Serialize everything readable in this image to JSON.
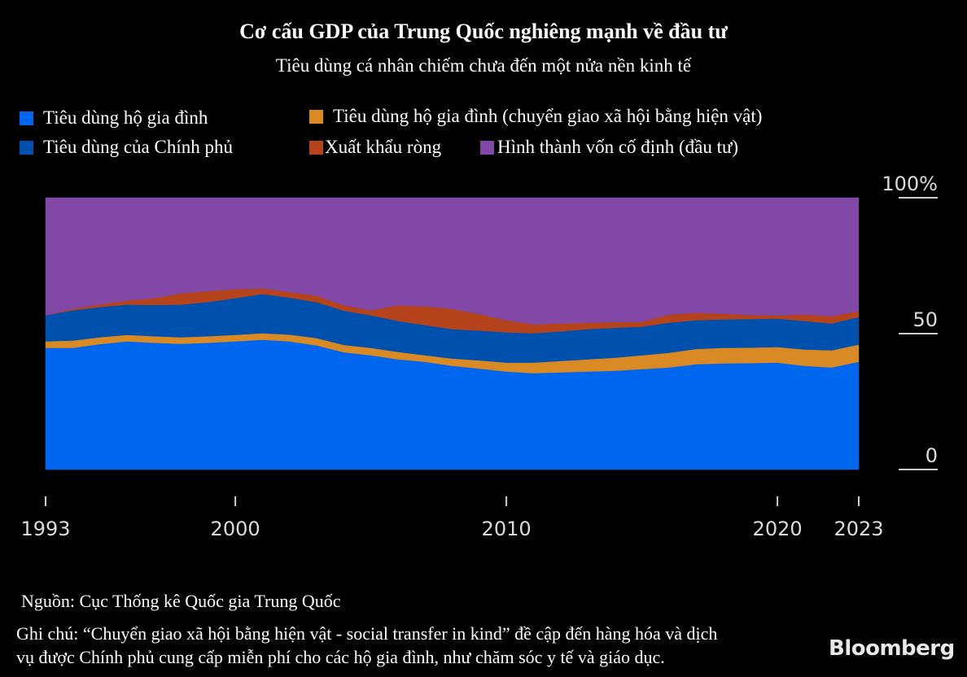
{
  "header": {
    "title": "Cơ cấu GDP của Trung Quốc nghiêng mạnh về đầu tư",
    "subtitle": "Tiêu dùng cá nhân chiếm chưa đến một nửa nền kinh tế"
  },
  "legend": [
    {
      "key": "household",
      "label": "Tiêu dùng hộ gia đình",
      "color": "#0066EE"
    },
    {
      "key": "transfer",
      "label": "Tiêu dùng hộ gia đình (chuyển giao xã hội bằng hiện vật)",
      "color": "#D98A24"
    },
    {
      "key": "government",
      "label": "Tiêu dùng của Chính phủ",
      "color": "#0050AE"
    },
    {
      "key": "net_exports",
      "label": "Xuất khẩu ròng",
      "color": "#B5441C"
    },
    {
      "key": "investment",
      "label": "Hình thành vốn cố định (đầu tư)",
      "color": "#8148A8"
    }
  ],
  "footer": {
    "source": "Nguồn: Cục Thống kê Quốc gia Trung Quốc",
    "note_line1": "Ghi chú: “Chuyển giao xã hội bằng hiện vật - social transfer in kind” đề cập đến hàng hóa và dịch",
    "note_line2": "vụ được Chính phủ cung cấp miễn phí cho các hộ gia đình, như chăm sóc y tế và giáo dục.",
    "brand": "Bloomberg"
  },
  "chart_data": {
    "type": "area",
    "stacked": true,
    "title": "Cơ cấu GDP của Trung Quốc nghiêng mạnh về đầu tư",
    "subtitle": "Tiêu dùng cá nhân chiếm chưa đến một nửa nền kinh tế",
    "xlabel": "",
    "ylabel": "",
    "x": [
      1993,
      1994,
      1995,
      1996,
      1997,
      1998,
      1999,
      2000,
      2001,
      2002,
      2003,
      2004,
      2005,
      2006,
      2007,
      2008,
      2009,
      2010,
      2011,
      2012,
      2013,
      2014,
      2015,
      2016,
      2017,
      2018,
      2019,
      2020,
      2021,
      2022,
      2023
    ],
    "x_tick_labels": [
      "1993",
      "2000",
      "2010",
      "2020",
      "2023"
    ],
    "y_tick_labels": [
      "100%",
      "50",
      "0"
    ],
    "y_ticks": [
      100,
      50,
      0
    ],
    "ylim": [
      0,
      100
    ],
    "xlim": [
      1993,
      2023
    ],
    "grid": false,
    "legend_position": "top",
    "series": [
      {
        "name": "Tiêu dùng hộ gia đình",
        "color": "#0066EE",
        "values": [
          44.6,
          44.6,
          46.0,
          47.0,
          46.5,
          46.1,
          46.5,
          47.0,
          47.6,
          47.0,
          45.5,
          43.0,
          41.9,
          40.4,
          39.5,
          38.0,
          37.0,
          35.9,
          35.3,
          35.6,
          35.9,
          36.2,
          36.8,
          37.4,
          38.6,
          38.9,
          39.0,
          39.2,
          38.0,
          37.4,
          39.5
        ]
      },
      {
        "name": "Tiêu dùng hộ gia đình (chuyển giao xã hội bằng hiện vật)",
        "color": "#D98A24",
        "values": [
          2.4,
          2.7,
          2.5,
          2.4,
          2.4,
          2.4,
          2.4,
          2.4,
          2.4,
          2.5,
          2.7,
          2.7,
          2.7,
          2.7,
          2.4,
          2.7,
          3.0,
          3.3,
          3.9,
          4.2,
          4.5,
          4.8,
          5.1,
          5.4,
          5.6,
          5.7,
          5.7,
          5.7,
          6.0,
          6.3,
          6.3
        ]
      },
      {
        "name": "Tiêu dùng của Chính phủ",
        "color": "#0050AE",
        "values": [
          9.6,
          11.1,
          11.1,
          11.1,
          11.5,
          12.0,
          12.6,
          13.5,
          14.4,
          13.6,
          13.2,
          12.6,
          12.0,
          11.4,
          11.1,
          10.8,
          11.0,
          11.1,
          10.8,
          10.9,
          11.1,
          11.0,
          10.5,
          11.1,
          10.6,
          10.5,
          10.5,
          10.5,
          10.5,
          9.9,
          10.2
        ]
      },
      {
        "name": "Xuất khẩu ròng",
        "color": "#B5441C",
        "values": [
          0.0,
          0.6,
          1.0,
          1.5,
          2.5,
          4.2,
          4.0,
          3.3,
          2.1,
          2.1,
          2.4,
          2.0,
          1.8,
          5.7,
          6.9,
          7.5,
          6.0,
          4.5,
          3.3,
          2.9,
          2.4,
          2.1,
          1.8,
          3.0,
          2.7,
          2.1,
          1.5,
          1.2,
          2.4,
          2.7,
          2.1
        ]
      },
      {
        "name": "Hình thành vốn cố định (đầu tư)",
        "color": "#8148A8",
        "values": [
          43.4,
          41.0,
          39.4,
          38.0,
          37.1,
          35.3,
          34.5,
          33.8,
          33.5,
          34.8,
          36.2,
          39.7,
          41.6,
          39.8,
          40.1,
          41.0,
          43.0,
          45.2,
          46.7,
          46.4,
          46.1,
          45.9,
          45.8,
          43.1,
          42.5,
          42.8,
          43.3,
          43.4,
          43.1,
          43.7,
          41.9
        ]
      }
    ]
  }
}
